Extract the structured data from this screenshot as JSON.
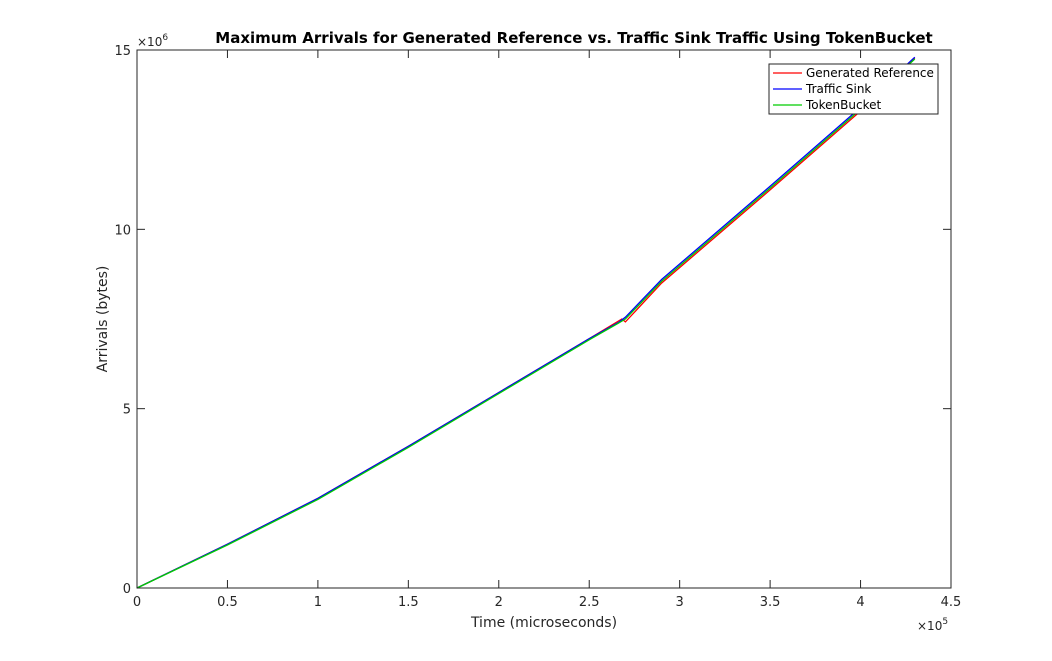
{
  "chart_data": {
    "type": "line",
    "title": "Maximum Arrivals for Generated Reference vs. Traffic Sink Traffic Using TokenBucket",
    "xlabel": "Time (microseconds)",
    "ylabel": "Arrivals (bytes)",
    "x_exponent": {
      "base": "×10",
      "power": "5"
    },
    "y_exponent": {
      "base": "×10",
      "power": "6"
    },
    "xlim": [
      0,
      4.5
    ],
    "ylim": [
      0,
      15
    ],
    "x_ticks": [
      0,
      0.5,
      1,
      1.5,
      2,
      2.5,
      3,
      3.5,
      4,
      4.5
    ],
    "x_tick_labels": [
      "0",
      "0.5",
      "1",
      "1.5",
      "2",
      "2.5",
      "3",
      "3.5",
      "4",
      "4.5"
    ],
    "y_ticks": [
      0,
      5,
      10,
      15
    ],
    "y_tick_labels": [
      "0",
      "5",
      "10",
      "15"
    ],
    "grid": false,
    "box": true,
    "legend_position": "top-right",
    "series": [
      {
        "name": "Generated Reference",
        "color": "#ff0000",
        "points": [
          [
            0,
            0
          ],
          [
            0.5,
            1.22
          ],
          [
            1,
            2.5
          ],
          [
            1.5,
            3.95
          ],
          [
            2,
            5.45
          ],
          [
            2.5,
            6.95
          ],
          [
            2.68,
            7.5
          ],
          [
            2.7,
            7.42
          ],
          [
            2.9,
            8.5
          ],
          [
            3.5,
            11.1
          ],
          [
            4,
            13.3
          ],
          [
            4.3,
            14.78
          ]
        ]
      },
      {
        "name": "Traffic Sink",
        "color": "#0000ff",
        "points": [
          [
            0,
            0
          ],
          [
            0.5,
            1.22
          ],
          [
            1,
            2.5
          ],
          [
            1.5,
            3.95
          ],
          [
            2,
            5.45
          ],
          [
            2.5,
            6.95
          ],
          [
            2.66,
            7.4
          ],
          [
            2.7,
            7.55
          ],
          [
            2.9,
            8.6
          ],
          [
            3.5,
            11.2
          ],
          [
            4,
            13.4
          ],
          [
            4.3,
            14.8
          ]
        ]
      },
      {
        "name": "TokenBucket",
        "color": "#00cc00",
        "points": [
          [
            0,
            0
          ],
          [
            0.5,
            1.2
          ],
          [
            1,
            2.47
          ],
          [
            1.5,
            3.92
          ],
          [
            2,
            5.42
          ],
          [
            2.5,
            6.92
          ],
          [
            2.66,
            7.38
          ],
          [
            2.7,
            7.5
          ],
          [
            2.9,
            8.55
          ],
          [
            3.5,
            11.15
          ],
          [
            4,
            13.35
          ],
          [
            4.3,
            14.75
          ]
        ]
      }
    ]
  }
}
